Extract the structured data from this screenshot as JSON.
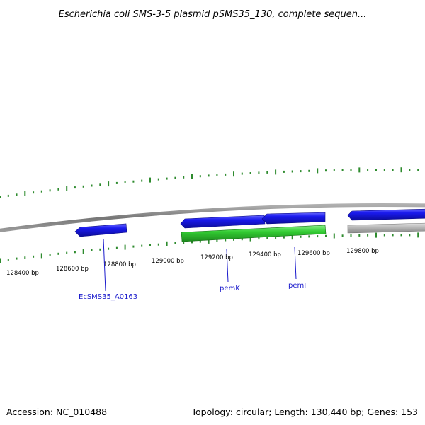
{
  "title": "Escherichia coli SMS-3-5 plasmid pSMS35_130, complete sequen...",
  "footer": {
    "accession": "Accession: NC_010488",
    "summary": "Topology: circular; Length: 130,440 bp; Genes: 153"
  },
  "ticks": [
    {
      "label": "128400 bp"
    },
    {
      "label": "128600 bp"
    },
    {
      "label": "128800 bp"
    },
    {
      "label": "129000 bp"
    },
    {
      "label": "129200 bp"
    },
    {
      "label": "129400 bp"
    },
    {
      "label": "129600 bp"
    },
    {
      "label": "129800 bp"
    }
  ],
  "genes": [
    {
      "name": "EcSMS35_A0163",
      "color": "#1a1aee"
    },
    {
      "name": "pemK",
      "color": "#1a1aee"
    },
    {
      "name": "pemI",
      "color": "#1a1aee"
    }
  ],
  "colors": {
    "backbone": "#888888",
    "forward_gene": "#1a1aee",
    "rna": "#33cc33",
    "other": "#bbbbbb",
    "tick": "#2e8b2e",
    "label": "#1a1acc"
  }
}
